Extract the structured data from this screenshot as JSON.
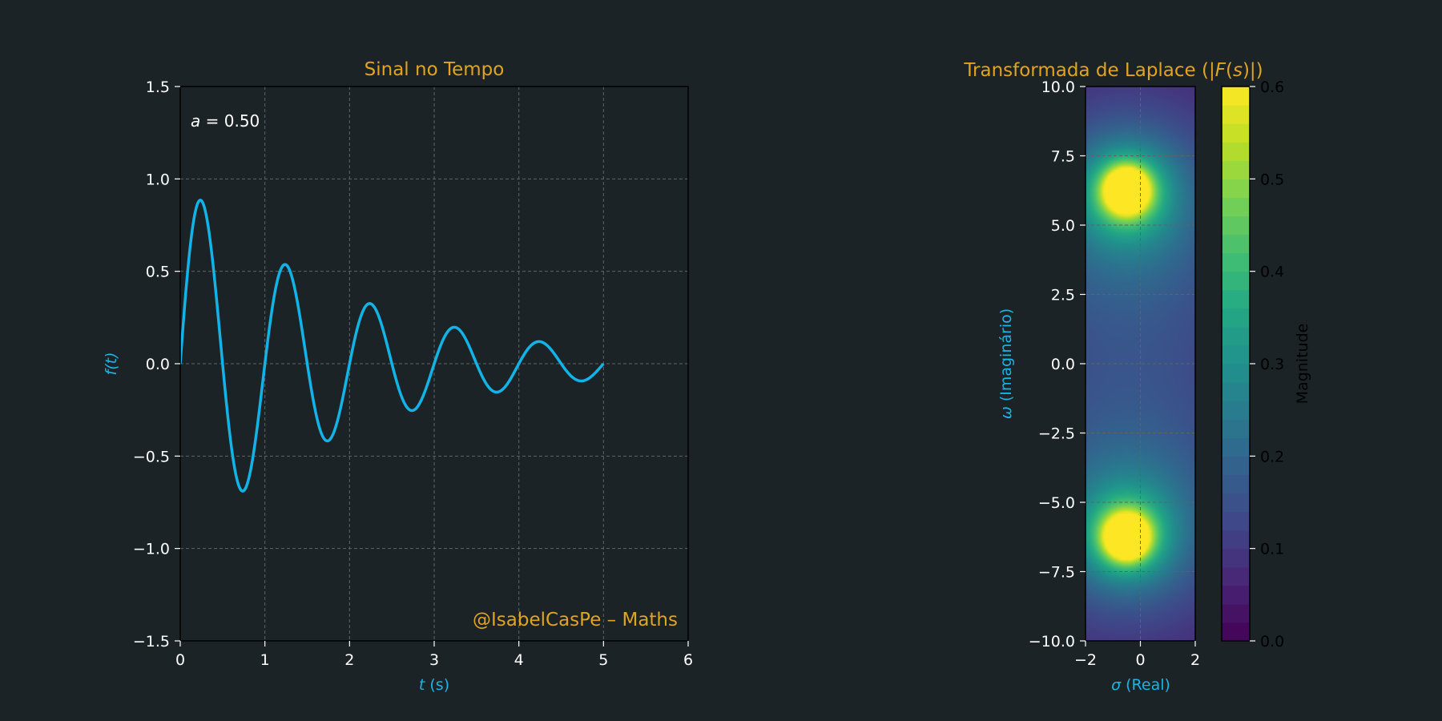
{
  "colors": {
    "background": "#1c2326",
    "accent_title": "#e0a420",
    "axis_label": "#1ab4e6",
    "signal_line": "#12b4e8",
    "tick": "#ffffff",
    "cbar_tick": "#000000"
  },
  "chart_data": [
    {
      "type": "line",
      "title": "Sinal no Tempo",
      "xlabel_var": "t",
      "xlabel_unit": " (s)",
      "ylabel": "f(t)",
      "xlim": [
        0,
        6
      ],
      "ylim": [
        -1.5,
        1.5
      ],
      "xticks": [
        0,
        1,
        2,
        3,
        4,
        5,
        6
      ],
      "xtick_labels": [
        "0",
        "1",
        "2",
        "3",
        "4",
        "5",
        "6"
      ],
      "yticks": [
        -1.5,
        -1.0,
        -0.5,
        0.0,
        0.5,
        1.0,
        1.5
      ],
      "ytick_labels": [
        "−1.5",
        "−1.0",
        "−0.5",
        "0.0",
        "0.5",
        "1.0",
        "1.5"
      ],
      "grid": true,
      "annotation": {
        "var": "a",
        "text": " = 0.50"
      },
      "watermark": "@IsabelCasPe – Maths",
      "series": [
        {
          "function": "exp(-a t)·sin(2π t)",
          "a": 0.5,
          "frequency_hz": 1.0,
          "t_range": [
            0,
            5
          ]
        }
      ]
    },
    {
      "type": "heatmap",
      "title_prefix": "Transformada de Laplace (|",
      "title_var": "F",
      "title_mid": "(",
      "title_var2": "s",
      "title_suffix": ")|)",
      "xlabel_var": "σ",
      "xlabel_unit": " (Real)",
      "ylabel_var": "ω",
      "ylabel_unit": " (Imaginário)",
      "xlim": [
        -2,
        2
      ],
      "ylim": [
        -10,
        10
      ],
      "xticks": [
        -2,
        0,
        2
      ],
      "xtick_labels": [
        "−2",
        "0",
        "2"
      ],
      "yticks": [
        -10.0,
        -7.5,
        -5.0,
        -2.5,
        0.0,
        2.5,
        5.0,
        7.5,
        10.0
      ],
      "ytick_labels": [
        "−10.0",
        "−7.5",
        "−5.0",
        "−2.5",
        "0.0",
        "2.5",
        "5.0",
        "7.5",
        "10.0"
      ],
      "grid": true,
      "colormap": "viridis",
      "clim": [
        0,
        0.6
      ],
      "peak": {
        "sigma": -0.5,
        "omega": -6.28
      },
      "colorbar": {
        "label": "Magnitude",
        "ticks": [
          0.0,
          0.1,
          0.2,
          0.3,
          0.4,
          0.5,
          0.6
        ],
        "tick_labels": [
          "0.0",
          "0.1",
          "0.2",
          "0.3",
          "0.4",
          "0.5",
          "0.6"
        ]
      }
    }
  ]
}
